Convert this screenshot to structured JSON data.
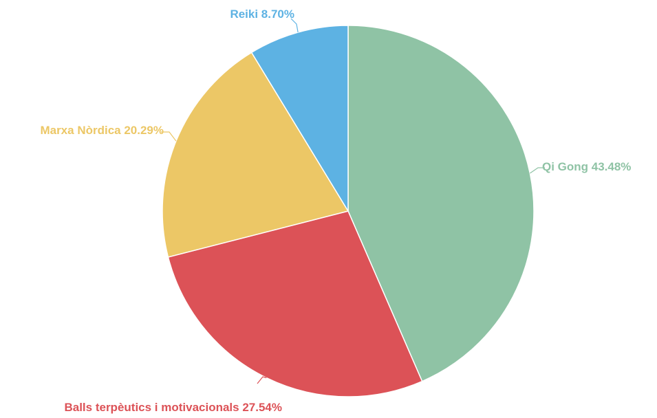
{
  "chart_data": {
    "type": "pie",
    "categories": [
      "Qi Gong",
      "Balls terpèutics i motivacionals",
      "Marxa Nòrdica",
      "Reiki"
    ],
    "values": [
      43.48,
      27.54,
      20.29,
      8.7
    ],
    "labels": [
      "Qi Gong 43.48%",
      "Balls terpèutics i motivacionals 27.54%",
      "Marxa Nòrdica 20.29%",
      "Reiki 8.70%"
    ],
    "colors": [
      "#8fc3a5",
      "#dc5257",
      "#ecc766",
      "#5db2e3"
    ],
    "start_angle": "12 o'clock",
    "direction": "clockwise",
    "legend": "none"
  }
}
